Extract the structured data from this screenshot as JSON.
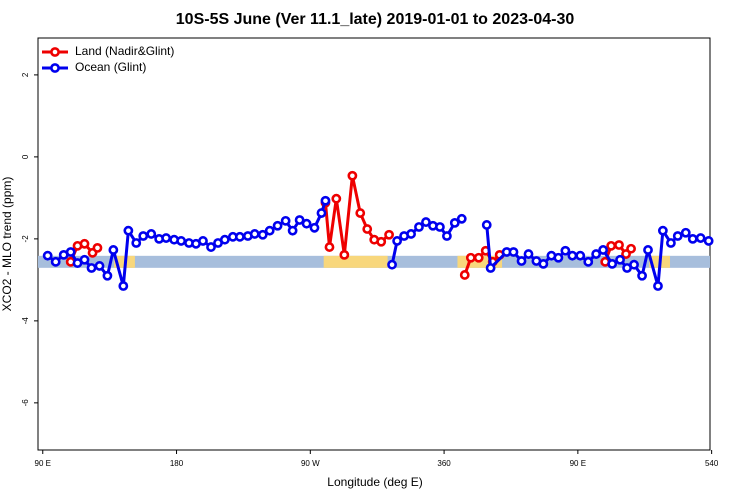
{
  "chart_data": {
    "type": "line",
    "title": "10S-5S June (Ver 11.1_late)   2019-01-01 to 2023-04-30",
    "xlabel": "Longitude (deg E)",
    "ylabel": "XCO2 - MLO trend (ppm)",
    "xlim": [
      86.8,
      538.9
    ],
    "ylim": [
      -7.15,
      2.9
    ],
    "xticks": [
      {
        "value": 90,
        "label": "90 E"
      },
      180,
      {
        "value": 270,
        "label": "90 W"
      },
      360,
      {
        "value": 450,
        "label": "90 E"
      },
      540
    ],
    "yticks": [
      2,
      0,
      -2,
      -4,
      -6
    ],
    "legend": "top-left",
    "band": {
      "value": -2.56,
      "ocean_color": "#a7bedc",
      "land_color": "#f8d77c",
      "land": [
        [
          138,
          152
        ],
        [
          279,
          322
        ],
        [
          369,
          399
        ],
        [
          498,
          512
        ]
      ]
    },
    "series": [
      {
        "name": "Land (Nadir&Glint)",
        "color": "#ee0000",
        "x": [
          108.8,
          113.4,
          118.1,
          123.5,
          126.8,
          null,
          280.2,
          282.9,
          287.5,
          292.9,
          298.3,
          303.6,
          308.3,
          313.0,
          317.7,
          323.0,
          null,
          373.9,
          378.0,
          383.3,
          388.0,
          392.7,
          397.4,
          null,
          468.4,
          472.4,
          477.7,
          482.4,
          485.8
        ],
        "values": [
          -2.56,
          -2.17,
          -2.12,
          -2.34,
          -2.22,
          null,
          -1.12,
          -2.2,
          -1.02,
          -2.39,
          -0.46,
          -1.37,
          -1.76,
          -2.02,
          -2.07,
          -1.9,
          null,
          -2.88,
          -2.46,
          -2.46,
          -2.29,
          -2.56,
          -2.39,
          null,
          -2.56,
          -2.17,
          -2.15,
          -2.37,
          -2.24
        ]
      },
      {
        "name": "Ocean (Glint)",
        "color": "#0000ee",
        "x": [
          93.3,
          98.7,
          104.1,
          108.8,
          113.4,
          118.1,
          122.8,
          128.2,
          133.5,
          137.5,
          144.2,
          147.6,
          152.9,
          157.6,
          163.0,
          168.3,
          173.0,
          178.4,
          183.1,
          188.4,
          193.1,
          197.8,
          203.2,
          207.9,
          212.5,
          217.9,
          222.6,
          228.0,
          232.6,
          238.0,
          242.7,
          248.0,
          253.4,
          258.1,
          262.8,
          267.5,
          272.8,
          277.5,
          280.2,
          null,
          325.0,
          328.4,
          333.1,
          337.8,
          343.1,
          347.8,
          352.5,
          357.2,
          361.9,
          367.2,
          371.9,
          null,
          388.7,
          391.3,
          402.1,
          406.7,
          412.1,
          416.8,
          422.1,
          426.8,
          432.2,
          436.9,
          441.6,
          446.3,
          451.6,
          457.0,
          462.3,
          467.0,
          473.1,
          478.4,
          483.1,
          487.8,
          493.2,
          497.2,
          503.9,
          507.2,
          512.6,
          517.2,
          522.6,
          527.3,
          532.6,
          538.0
        ],
        "values": [
          -2.41,
          -2.56,
          -2.39,
          -2.32,
          -2.59,
          -2.51,
          -2.71,
          -2.66,
          -2.9,
          -2.27,
          -3.15,
          -1.8,
          -2.1,
          -1.93,
          -1.88,
          -2.0,
          -1.98,
          -2.02,
          -2.05,
          -2.1,
          -2.12,
          -2.05,
          -2.2,
          -2.1,
          -2.02,
          -1.95,
          -1.95,
          -1.93,
          -1.88,
          -1.9,
          -1.8,
          -1.68,
          -1.56,
          -1.8,
          -1.54,
          -1.63,
          -1.73,
          -1.37,
          -1.07,
          null,
          -2.63,
          -2.05,
          -1.93,
          -1.88,
          -1.71,
          -1.59,
          -1.68,
          -1.71,
          -1.93,
          -1.61,
          -1.51,
          null,
          -1.66,
          -2.71,
          -2.32,
          -2.32,
          -2.54,
          -2.37,
          -2.54,
          -2.61,
          -2.41,
          -2.46,
          -2.29,
          -2.41,
          -2.41,
          -2.56,
          -2.37,
          -2.27,
          -2.61,
          -2.51,
          -2.71,
          -2.63,
          -2.9,
          -2.27,
          -3.15,
          -1.8,
          -2.1,
          -1.93,
          -1.85,
          -2.0,
          -1.98,
          -2.05
        ]
      }
    ]
  }
}
